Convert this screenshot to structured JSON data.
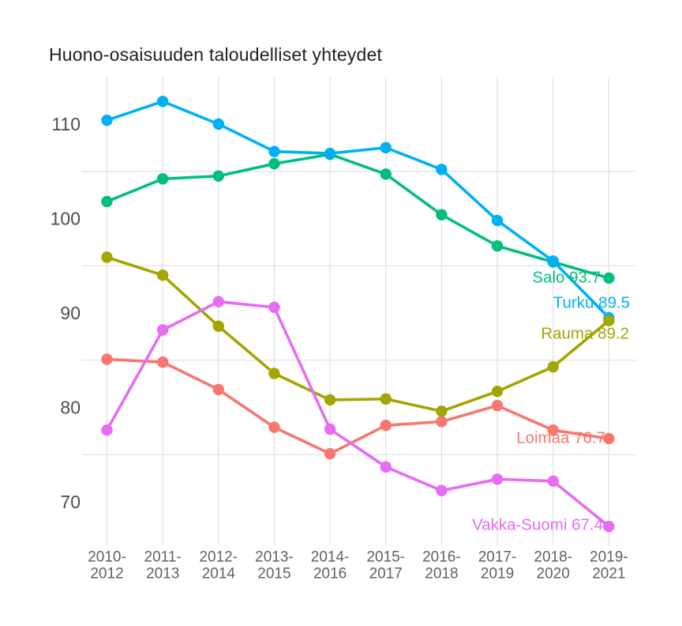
{
  "chart_data": {
    "type": "line",
    "title": "Huono-osaisuuden taloudelliset yhteydet",
    "xlabel": "",
    "ylabel": "",
    "categories": [
      "2010-2012",
      "2011-2013",
      "2012-2014",
      "2013-2015",
      "2014-2016",
      "2015-2017",
      "2016-2018",
      "2017-2019",
      "2018-2020",
      "2019-2021"
    ],
    "y_ticks": [
      70,
      80,
      90,
      100,
      110
    ],
    "ylim": [
      65.5,
      115
    ],
    "grid": {
      "vertical": "one line per category",
      "horizontal_at_values": [
        75,
        85,
        95,
        105
      ],
      "color": "#e2e2e2"
    },
    "legend_position": "direct end-of-line labels",
    "series": [
      {
        "name": "Salo",
        "color": "#00BF7D",
        "end_label": "Salo 93.7",
        "values": [
          101.8,
          104.2,
          104.5,
          105.8,
          106.8,
          104.7,
          100.4,
          97.1,
          95.4,
          93.7
        ]
      },
      {
        "name": "Turku",
        "color": "#00B0F6",
        "end_label": "Turku 89.5",
        "values": [
          110.4,
          112.4,
          110.0,
          107.1,
          106.9,
          107.5,
          105.2,
          99.8,
          95.5,
          89.5
        ]
      },
      {
        "name": "Rauma",
        "color": "#A3A500",
        "end_label": "Rauma 89.2",
        "values": [
          95.9,
          94.0,
          88.6,
          83.6,
          80.8,
          80.9,
          79.6,
          81.7,
          84.3,
          89.2
        ]
      },
      {
        "name": "Loimaa",
        "color": "#F8766D",
        "end_label": "Loimaa 76.7",
        "values": [
          85.1,
          84.8,
          81.9,
          77.9,
          75.1,
          78.1,
          78.5,
          80.2,
          77.6,
          76.7
        ]
      },
      {
        "name": "Vakka-Suomi",
        "color": "#E76BF3",
        "end_label": "Vakka-Suomi 67.4",
        "values": [
          77.6,
          88.2,
          91.2,
          90.6,
          77.7,
          73.7,
          71.2,
          72.4,
          72.2,
          67.4
        ]
      }
    ],
    "text_colors": {
      "title": "#212121",
      "y_tick": "#4d4d4d",
      "x_tick": "#616161"
    }
  }
}
